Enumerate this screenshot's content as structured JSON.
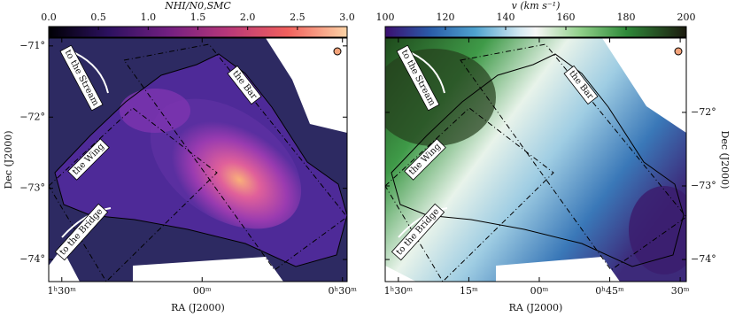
{
  "panels": [
    {
      "colorbar": {
        "label": "NHI/N0,SMC",
        "lim": [
          0,
          3
        ],
        "ticks": [
          {
            "value": 0,
            "label": "0.0"
          },
          0.5,
          {
            "value": 1,
            "label": "1.0"
          },
          1.5,
          {
            "value": 2,
            "label": "2.0"
          },
          2.5,
          {
            "value": 3,
            "label": "3.0"
          }
        ]
      },
      "xlabel": "RA (J2000)",
      "ylabel": "Dec (J2000)",
      "xlim": [
        92.8,
        29
      ],
      "xticks": [
        {
          "value": 90,
          "label": "1ʰ30ᵐ"
        },
        {
          "value": 60,
          "label": "00ᵐ"
        },
        {
          "value": 30,
          "label": "0ʰ30ᵐ"
        }
      ],
      "ylim": [
        -70.89,
        -74.31
      ],
      "yticks": [
        {
          "value": -71,
          "label": "−71°"
        },
        {
          "value": -72,
          "label": "−72°"
        },
        {
          "value": -73,
          "label": "−73°"
        },
        {
          "value": -74,
          "label": "−74°"
        }
      ],
      "annotations": [
        "to the Stream",
        "the Wing",
        "to the Bridge",
        "the Bar"
      ]
    },
    {
      "colorbar": {
        "label": "v (km s⁻¹)",
        "lim": [
          100,
          200
        ],
        "ticks": [
          100,
          120,
          140,
          160,
          180,
          200
        ]
      },
      "xlabel": "RA (J2000)",
      "ylabel": "Dec (J2000)",
      "xlim": [
        92.8,
        28.7
      ],
      "xticks": [
        {
          "value": 90,
          "label": "1ʰ30ᵐ"
        },
        {
          "value": 75,
          "label": "15ᵐ"
        },
        {
          "value": 60,
          "label": "00ᵐ"
        },
        {
          "value": 45,
          "label": "0ʰ45ᵐ"
        },
        {
          "value": 30,
          "label": "30ᵐ"
        }
      ],
      "ylim": [
        -70.99,
        -74.3
      ],
      "yticks": [
        {
          "value": -72,
          "label": "−72°"
        },
        {
          "value": -73,
          "label": "−73°"
        },
        {
          "value": -74,
          "label": "−74°"
        }
      ],
      "annotations": [
        "to the Stream",
        "the Wing",
        "to the Bridge",
        "the Bar"
      ]
    }
  ]
}
